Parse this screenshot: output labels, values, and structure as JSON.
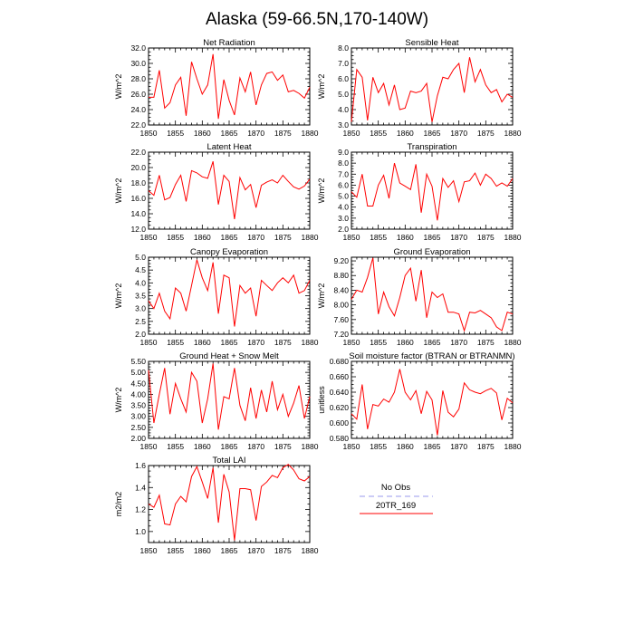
{
  "title": "Alaska (59-66.5N,170-140W)",
  "legend": {
    "entries": [
      {
        "label": "No Obs",
        "color": "#9999ee",
        "dashed": true
      },
      {
        "label": "20TR_169",
        "color": "#ff0000",
        "dashed": false
      }
    ]
  },
  "line_color": "#ff0000",
  "chart_data": [
    {
      "type": "line",
      "title": "Net Radiation",
      "ylabel": "W/m^2",
      "xlim": [
        1850,
        1880
      ],
      "ylim": [
        22,
        32
      ],
      "x_ticks": [
        1850,
        1855,
        1860,
        1865,
        1870,
        1875,
        1880
      ],
      "y_ticks": [
        "22.0",
        "24.0",
        "26.0",
        "28.0",
        "30.0",
        "32.0"
      ],
      "x": [
        1850,
        1851,
        1852,
        1853,
        1854,
        1855,
        1856,
        1857,
        1858,
        1859,
        1860,
        1861,
        1862,
        1863,
        1864,
        1865,
        1866,
        1867,
        1868,
        1869,
        1870,
        1871,
        1872,
        1873,
        1874,
        1875,
        1876,
        1877,
        1878,
        1879,
        1880
      ],
      "series": [
        {
          "name": "20TR_169",
          "values": [
            25.6,
            25.6,
            29.1,
            24.2,
            24.9,
            27.2,
            28.2,
            23.2,
            30.2,
            28.0,
            26.0,
            27.2,
            31.2,
            22.8,
            27.9,
            25.2,
            23.3,
            28.1,
            26.3,
            28.9,
            24.6,
            27.2,
            28.7,
            28.9,
            27.8,
            28.5,
            26.3,
            26.5,
            26.1,
            25.5,
            26.9
          ]
        }
      ]
    },
    {
      "type": "line",
      "title": "Sensible Heat",
      "ylabel": "W/m^2",
      "xlim": [
        1850,
        1880
      ],
      "ylim": [
        3,
        8
      ],
      "x_ticks": [
        1850,
        1855,
        1860,
        1865,
        1870,
        1875,
        1880
      ],
      "y_ticks": [
        "3.0",
        "4.0",
        "5.0",
        "6.0",
        "7.0",
        "8.0"
      ],
      "x": [
        1850,
        1851,
        1852,
        1853,
        1854,
        1855,
        1856,
        1857,
        1858,
        1859,
        1860,
        1861,
        1862,
        1863,
        1864,
        1865,
        1866,
        1867,
        1868,
        1869,
        1870,
        1871,
        1872,
        1873,
        1874,
        1875,
        1876,
        1877,
        1878,
        1879,
        1880
      ],
      "series": [
        {
          "name": "20TR_169",
          "values": [
            3.2,
            6.6,
            6.1,
            3.3,
            6.1,
            5.1,
            5.7,
            4.3,
            5.6,
            4.0,
            4.1,
            5.2,
            5.1,
            5.2,
            5.7,
            3.2,
            4.9,
            6.1,
            6.0,
            6.6,
            7.0,
            5.1,
            7.4,
            5.8,
            6.6,
            5.6,
            5.1,
            5.3,
            4.5,
            5.0,
            4.8
          ]
        }
      ]
    },
    {
      "type": "line",
      "title": "Latent Heat",
      "ylabel": "W/m^2",
      "xlim": [
        1850,
        1880
      ],
      "ylim": [
        12,
        22
      ],
      "x_ticks": [
        1850,
        1855,
        1860,
        1865,
        1870,
        1875,
        1880
      ],
      "y_ticks": [
        "12.0",
        "14.0",
        "16.0",
        "18.0",
        "20.0",
        "22.0"
      ],
      "x": [
        1850,
        1851,
        1852,
        1853,
        1854,
        1855,
        1856,
        1857,
        1858,
        1859,
        1860,
        1861,
        1862,
        1863,
        1864,
        1865,
        1866,
        1867,
        1868,
        1869,
        1870,
        1871,
        1872,
        1873,
        1874,
        1875,
        1876,
        1877,
        1878,
        1879,
        1880
      ],
      "series": [
        {
          "name": "20TR_169",
          "values": [
            17.0,
            16.4,
            19.0,
            15.8,
            16.1,
            17.8,
            19.0,
            15.6,
            19.6,
            19.3,
            18.8,
            18.6,
            20.8,
            15.2,
            19.0,
            18.2,
            13.3,
            18.7,
            17.1,
            17.8,
            14.8,
            17.7,
            18.1,
            18.4,
            18.0,
            19.0,
            18.2,
            17.5,
            17.2,
            17.6,
            18.5
          ]
        }
      ]
    },
    {
      "type": "line",
      "title": "Transpiration",
      "ylabel": "W/m^2",
      "xlim": [
        1850,
        1880
      ],
      "ylim": [
        2,
        9
      ],
      "x_ticks": [
        1850,
        1855,
        1860,
        1865,
        1870,
        1875,
        1880
      ],
      "y_ticks": [
        "2.0",
        "3.0",
        "4.0",
        "5.0",
        "6.0",
        "7.0",
        "8.0",
        "9.0"
      ],
      "x": [
        1850,
        1851,
        1852,
        1853,
        1854,
        1855,
        1856,
        1857,
        1858,
        1859,
        1860,
        1861,
        1862,
        1863,
        1864,
        1865,
        1866,
        1867,
        1868,
        1869,
        1870,
        1871,
        1872,
        1873,
        1874,
        1875,
        1876,
        1877,
        1878,
        1879,
        1880
      ],
      "series": [
        {
          "name": "20TR_169",
          "values": [
            5.4,
            4.9,
            7.0,
            4.1,
            4.1,
            6.0,
            6.9,
            4.8,
            8.0,
            6.2,
            5.9,
            5.6,
            7.9,
            3.5,
            7.0,
            5.9,
            2.8,
            6.6,
            5.8,
            6.4,
            4.5,
            6.3,
            6.4,
            7.1,
            6.0,
            7.0,
            6.6,
            5.9,
            6.2,
            5.9,
            6.6
          ]
        }
      ]
    },
    {
      "type": "line",
      "title": "Canopy Evaporation",
      "ylabel": "W/m^2",
      "xlim": [
        1850,
        1880
      ],
      "ylim": [
        2,
        5
      ],
      "x_ticks": [
        1850,
        1855,
        1860,
        1865,
        1870,
        1875,
        1880
      ],
      "y_ticks": [
        "2.0",
        "2.5",
        "3.0",
        "3.5",
        "4.0",
        "4.5",
        "5.0"
      ],
      "x": [
        1850,
        1851,
        1852,
        1853,
        1854,
        1855,
        1856,
        1857,
        1858,
        1859,
        1860,
        1861,
        1862,
        1863,
        1864,
        1865,
        1866,
        1867,
        1868,
        1869,
        1870,
        1871,
        1872,
        1873,
        1874,
        1875,
        1876,
        1877,
        1878,
        1879,
        1880
      ],
      "series": [
        {
          "name": "20TR_169",
          "values": [
            3.3,
            3.0,
            3.6,
            2.9,
            2.6,
            3.8,
            3.6,
            2.9,
            3.9,
            4.9,
            4.2,
            3.7,
            4.8,
            2.8,
            4.3,
            4.2,
            2.3,
            3.9,
            3.6,
            3.8,
            2.7,
            4.1,
            3.9,
            3.7,
            4.0,
            4.2,
            4.0,
            4.3,
            3.6,
            3.7,
            4.1
          ]
        }
      ]
    },
    {
      "type": "line",
      "title": "Ground Evaporation",
      "ylabel": "W/m^2",
      "xlim": [
        1850,
        1880
      ],
      "ylim": [
        7.2,
        9.3
      ],
      "x_ticks": [
        1850,
        1855,
        1860,
        1865,
        1870,
        1875,
        1880
      ],
      "y_ticks": [
        "7.20",
        "7.60",
        "8.00",
        "8.40",
        "8.80",
        "9.20"
      ],
      "x": [
        1850,
        1851,
        1852,
        1853,
        1854,
        1855,
        1856,
        1857,
        1858,
        1859,
        1860,
        1861,
        1862,
        1863,
        1864,
        1865,
        1866,
        1867,
        1868,
        1869,
        1870,
        1871,
        1872,
        1873,
        1874,
        1875,
        1876,
        1877,
        1878,
        1879,
        1880
      ],
      "series": [
        {
          "name": "20TR_169",
          "values": [
            8.15,
            8.4,
            8.35,
            8.75,
            9.28,
            7.75,
            8.35,
            7.95,
            7.7,
            8.2,
            8.8,
            9.0,
            8.1,
            8.95,
            7.65,
            8.35,
            8.2,
            8.3,
            7.8,
            7.8,
            7.75,
            7.3,
            7.8,
            7.78,
            7.85,
            7.75,
            7.65,
            7.4,
            7.3,
            7.8,
            7.75
          ]
        }
      ]
    },
    {
      "type": "line",
      "title": "Ground Heat + Snow Melt",
      "ylabel": "W/m^2",
      "xlim": [
        1850,
        1880
      ],
      "ylim": [
        2,
        5.5
      ],
      "x_ticks": [
        1850,
        1855,
        1860,
        1865,
        1870,
        1875,
        1880
      ],
      "y_ticks": [
        "2.00",
        "2.50",
        "3.00",
        "3.50",
        "4.00",
        "4.50",
        "5.00",
        "5.50"
      ],
      "x": [
        1850,
        1851,
        1852,
        1853,
        1854,
        1855,
        1856,
        1857,
        1858,
        1859,
        1860,
        1861,
        1862,
        1863,
        1864,
        1865,
        1866,
        1867,
        1868,
        1869,
        1870,
        1871,
        1872,
        1873,
        1874,
        1875,
        1876,
        1877,
        1878,
        1879,
        1880
      ],
      "series": [
        {
          "name": "20TR_169",
          "values": [
            5.1,
            2.7,
            4.0,
            5.2,
            3.1,
            4.5,
            3.8,
            3.2,
            5.0,
            4.6,
            2.7,
            3.8,
            5.4,
            2.4,
            3.9,
            3.8,
            5.2,
            3.5,
            2.8,
            4.3,
            2.9,
            4.2,
            3.2,
            4.6,
            3.3,
            4.0,
            3.0,
            3.6,
            4.4,
            2.9,
            3.9
          ]
        }
      ]
    },
    {
      "type": "line",
      "title": "Soil moisture factor (BTRAN or BTRANMN)",
      "ylabel": "unitless",
      "xlim": [
        1850,
        1880
      ],
      "ylim": [
        0.58,
        0.68
      ],
      "x_ticks": [
        1850,
        1855,
        1860,
        1865,
        1870,
        1875,
        1880
      ],
      "y_ticks": [
        "0.580",
        "0.600",
        "0.620",
        "0.640",
        "0.660",
        "0.680"
      ],
      "x": [
        1850,
        1851,
        1852,
        1853,
        1854,
        1855,
        1856,
        1857,
        1858,
        1859,
        1860,
        1861,
        1862,
        1863,
        1864,
        1865,
        1866,
        1867,
        1868,
        1869,
        1870,
        1871,
        1872,
        1873,
        1874,
        1875,
        1876,
        1877,
        1878,
        1879,
        1880
      ],
      "series": [
        {
          "name": "20TR_169",
          "values": [
            0.612,
            0.605,
            0.65,
            0.592,
            0.624,
            0.622,
            0.631,
            0.627,
            0.64,
            0.67,
            0.64,
            0.63,
            0.642,
            0.612,
            0.641,
            0.63,
            0.584,
            0.642,
            0.614,
            0.608,
            0.618,
            0.652,
            0.643,
            0.64,
            0.638,
            0.642,
            0.645,
            0.639,
            0.604,
            0.632,
            0.626
          ]
        }
      ]
    },
    {
      "type": "line",
      "title": "Total LAI",
      "ylabel": "m2/m2",
      "xlim": [
        1850,
        1880
      ],
      "ylim": [
        0.9,
        1.6
      ],
      "x_ticks": [
        1850,
        1855,
        1860,
        1865,
        1870,
        1875,
        1880
      ],
      "y_ticks": [
        "1.0",
        "1.2",
        "1.4",
        "1.6"
      ],
      "x": [
        1850,
        1851,
        1852,
        1853,
        1854,
        1855,
        1856,
        1857,
        1858,
        1859,
        1860,
        1861,
        1862,
        1863,
        1864,
        1865,
        1866,
        1867,
        1868,
        1869,
        1870,
        1871,
        1872,
        1873,
        1874,
        1875,
        1876,
        1877,
        1878,
        1879,
        1880
      ],
      "series": [
        {
          "name": "20TR_169",
          "values": [
            1.25,
            1.22,
            1.33,
            1.07,
            1.06,
            1.25,
            1.32,
            1.27,
            1.5,
            1.59,
            1.45,
            1.3,
            1.58,
            1.08,
            1.52,
            1.36,
            0.92,
            1.39,
            1.39,
            1.38,
            1.1,
            1.41,
            1.45,
            1.51,
            1.49,
            1.58,
            1.61,
            1.56,
            1.48,
            1.46,
            1.5
          ]
        }
      ]
    }
  ]
}
